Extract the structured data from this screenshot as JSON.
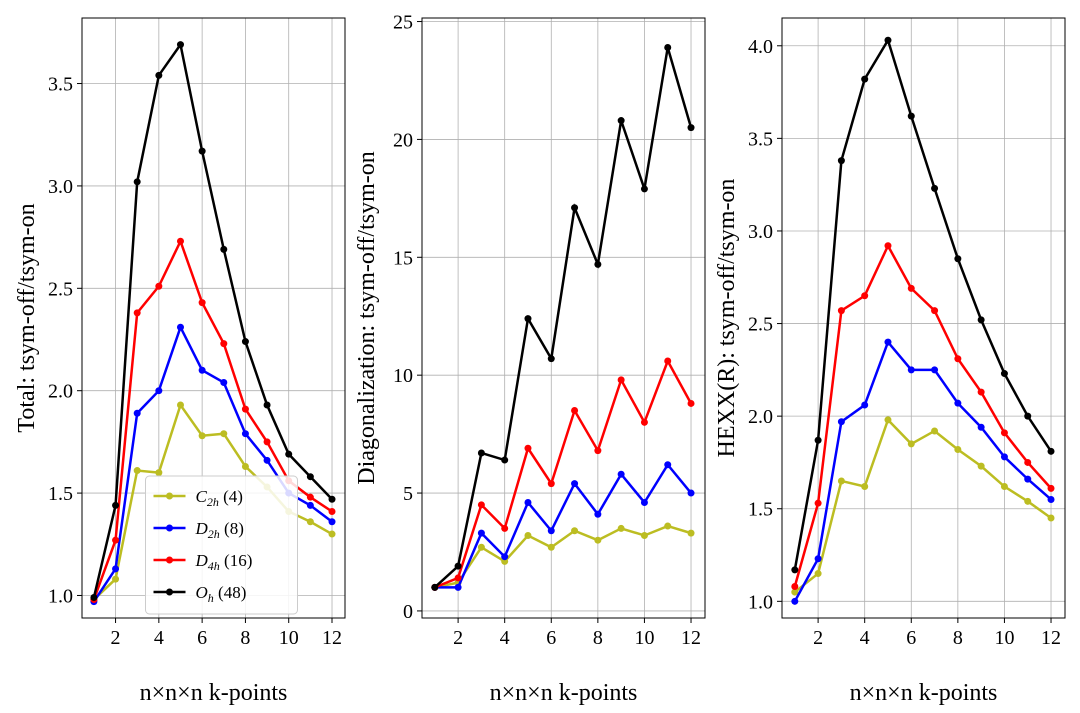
{
  "chart_data": [
    {
      "type": "line",
      "ylabel": "Total: tsym-off/tsym-on",
      "xlabel": "n×n×n k-points",
      "x": [
        1,
        2,
        3,
        4,
        5,
        6,
        7,
        8,
        9,
        10,
        11,
        12
      ],
      "xlim": [
        0.45,
        12.6
      ],
      "xticks": [
        2,
        4,
        6,
        8,
        10,
        12
      ],
      "ylim": [
        0.89,
        3.82
      ],
      "yticks": [
        {
          "value": 1.0,
          "label": "1.0"
        },
        {
          "value": 1.5,
          "label": "1.5"
        },
        {
          "value": 2.0,
          "label": "2.0"
        },
        {
          "value": 2.5,
          "label": "2.5"
        },
        {
          "value": 3.0,
          "label": "3.0"
        },
        {
          "value": 3.5,
          "label": "3.5"
        }
      ],
      "grid": true,
      "legend": "lower center",
      "series": [
        {
          "name": "C2h (4)",
          "color": "#bcbd22",
          "values": [
            0.98,
            1.08,
            1.61,
            1.6,
            1.93,
            1.78,
            1.79,
            1.63,
            1.53,
            1.41,
            1.36,
            1.3
          ]
        },
        {
          "name": "D2h (8)",
          "color": "#0000ff",
          "values": [
            0.97,
            1.13,
            1.89,
            2.0,
            2.31,
            2.1,
            2.04,
            1.79,
            1.66,
            1.5,
            1.44,
            1.36
          ]
        },
        {
          "name": "D4h (16)",
          "color": "#ff0000",
          "values": [
            0.98,
            1.27,
            2.38,
            2.51,
            2.73,
            2.43,
            2.23,
            1.91,
            1.75,
            1.56,
            1.48,
            1.41
          ]
        },
        {
          "name": "Oh (48)",
          "color": "#000000",
          "values": [
            0.99,
            1.44,
            3.02,
            3.54,
            3.69,
            3.17,
            2.69,
            2.24,
            1.93,
            1.69,
            1.58,
            1.47
          ]
        }
      ]
    },
    {
      "type": "line",
      "ylabel": "Diagonalization: tsym-off/tsym-on",
      "xlabel": "n×n×n k-points",
      "x": [
        1,
        2,
        3,
        4,
        5,
        6,
        7,
        8,
        9,
        10,
        11,
        12
      ],
      "xlim": [
        0.45,
        12.6
      ],
      "xticks": [
        2,
        4,
        6,
        8,
        10,
        12
      ],
      "ylim": [
        -0.3,
        25.15
      ],
      "yticks": [
        0,
        5,
        10,
        15,
        20,
        25
      ],
      "grid": true,
      "series": [
        {
          "color": "#bcbd22",
          "values": [
            1,
            1.2,
            2.7,
            2.1,
            3.2,
            2.7,
            3.4,
            3.0,
            3.5,
            3.2,
            3.6,
            3.3
          ]
        },
        {
          "color": "#0000ff",
          "values": [
            1,
            1.0,
            3.3,
            2.3,
            4.6,
            3.4,
            5.4,
            4.1,
            5.8,
            4.6,
            6.2,
            5.0
          ]
        },
        {
          "color": "#ff0000",
          "values": [
            1,
            1.4,
            4.5,
            3.5,
            6.9,
            5.4,
            8.5,
            6.8,
            9.8,
            8.0,
            10.6,
            8.8
          ]
        },
        {
          "color": "#000000",
          "values": [
            1,
            1.9,
            6.7,
            6.4,
            12.4,
            10.7,
            17.1,
            14.7,
            20.8,
            17.9,
            23.9,
            20.5
          ]
        }
      ]
    },
    {
      "type": "line",
      "ylabel": "HEXX(R): tsym-off/tsym-on",
      "xlabel": "n×n×n k-points",
      "x": [
        1,
        2,
        3,
        4,
        5,
        6,
        7,
        8,
        9,
        10,
        11,
        12
      ],
      "xlim": [
        0.45,
        12.6
      ],
      "xticks": [
        2,
        4,
        6,
        8,
        10,
        12
      ],
      "ylim": [
        0.91,
        4.15
      ],
      "yticks": [
        {
          "value": 1.0,
          "label": "1.0"
        },
        {
          "value": 1.5,
          "label": "1.5"
        },
        {
          "value": 2.0,
          "label": "2.0"
        },
        {
          "value": 2.5,
          "label": "2.5"
        },
        {
          "value": 3.0,
          "label": "3.0"
        },
        {
          "value": 3.5,
          "label": "3.5"
        },
        {
          "value": 4.0,
          "label": "4.0"
        }
      ],
      "grid": true,
      "series": [
        {
          "color": "#bcbd22",
          "values": [
            1.05,
            1.15,
            1.65,
            1.62,
            1.98,
            1.85,
            1.92,
            1.82,
            1.73,
            1.62,
            1.54,
            1.45
          ]
        },
        {
          "color": "#0000ff",
          "values": [
            1.0,
            1.23,
            1.97,
            2.06,
            2.4,
            2.25,
            2.25,
            2.07,
            1.94,
            1.78,
            1.66,
            1.55
          ]
        },
        {
          "color": "#ff0000",
          "values": [
            1.08,
            1.53,
            2.57,
            2.65,
            2.92,
            2.69,
            2.57,
            2.31,
            2.13,
            1.91,
            1.75,
            1.61
          ]
        },
        {
          "color": "#000000",
          "values": [
            1.17,
            1.87,
            3.38,
            3.82,
            4.03,
            3.62,
            3.23,
            2.85,
            2.52,
            2.23,
            2.0,
            1.81
          ]
        }
      ]
    }
  ]
}
